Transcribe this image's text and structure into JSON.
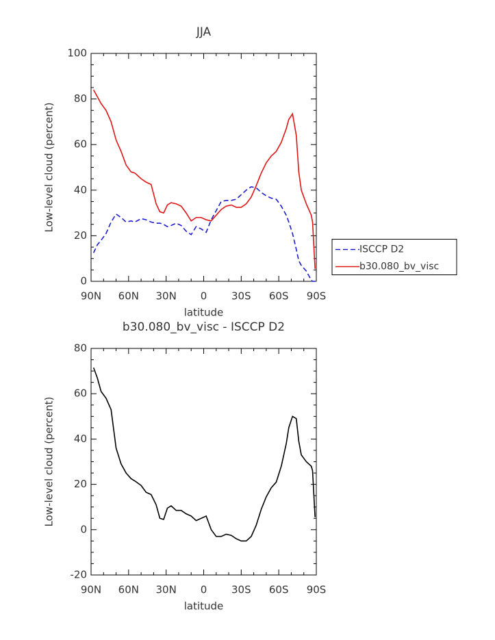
{
  "chart_data": [
    {
      "type": "line",
      "title": "JJA",
      "xlabel": "latitude",
      "ylabel": "Low-level cloud (percent)",
      "x": [
        88,
        85,
        82,
        78,
        74,
        70,
        66,
        62,
        58,
        55,
        50,
        46,
        42,
        38,
        35,
        32,
        29,
        26,
        22,
        18,
        14,
        10,
        6,
        2,
        -2,
        -6,
        -10,
        -14,
        -18,
        -22,
        -26,
        -30,
        -34,
        -38,
        -42,
        -46,
        -50,
        -54,
        -58,
        -62,
        -66,
        -68,
        -71,
        -74,
        -76,
        -78,
        -82,
        -86,
        -87,
        -89
      ],
      "series": [
        {
          "name": "ISCCP D2",
          "color": "#1c1ccf",
          "linestyle": "dashed",
          "values": [
            12.5,
            16,
            18,
            21,
            26,
            29.5,
            28,
            26,
            26.5,
            26,
            27.5,
            27,
            26,
            25.5,
            25.5,
            25,
            24,
            24.5,
            25.5,
            24.5,
            22,
            20.5,
            24,
            23,
            21.5,
            27,
            31,
            35,
            35.5,
            35.5,
            36,
            38,
            40,
            41.5,
            41,
            39,
            37.5,
            36.5,
            36,
            33,
            29,
            26,
            21,
            14,
            9,
            7,
            4.5,
            0.5,
            0,
            0
          ]
        },
        {
          "name": "b30.080_bv_visc",
          "color": "#e01515",
          "linestyle": "solid",
          "values": [
            84,
            81,
            78,
            75,
            70,
            62,
            57,
            51,
            48,
            47.5,
            45,
            43.5,
            42.5,
            34,
            30.5,
            30,
            33.5,
            34.5,
            34,
            33,
            30,
            26.5,
            28,
            28,
            27,
            26.5,
            29,
            31.5,
            33,
            33.5,
            32.5,
            32.5,
            34,
            37,
            42,
            47.5,
            52,
            55,
            57,
            61,
            67,
            71,
            73.5,
            64,
            48,
            40,
            34,
            29,
            26,
            5.5
          ]
        }
      ],
      "xlim": [
        90,
        -90
      ],
      "ylim": [
        0,
        100
      ],
      "xticks": [
        {
          "value": 90,
          "label": "90N"
        },
        {
          "value": 60,
          "label": "60N"
        },
        {
          "value": 30,
          "label": "30N"
        },
        0,
        {
          "value": -30,
          "label": "30S"
        },
        {
          "value": -60,
          "label": "60S"
        },
        {
          "value": -90,
          "label": "90S"
        }
      ],
      "yticks": [
        0,
        20,
        40,
        60,
        80,
        100
      ],
      "legend": "right"
    },
    {
      "type": "line",
      "title": "b30.080_bv_visc - ISCCP D2",
      "xlabel": "latitude",
      "ylabel": "Low-level cloud (percent)",
      "x": [
        88,
        85,
        82,
        78,
        74,
        70,
        66,
        62,
        58,
        55,
        50,
        46,
        42,
        38,
        35,
        32,
        29,
        26,
        22,
        18,
        14,
        10,
        6,
        2,
        -2,
        -6,
        -10,
        -14,
        -18,
        -22,
        -26,
        -30,
        -34,
        -38,
        -42,
        -46,
        -50,
        -54,
        -58,
        -62,
        -66,
        -68,
        -71,
        -74,
        -76,
        -78,
        -82,
        -86,
        -87,
        -89
      ],
      "series": [
        {
          "color": "#000000",
          "linestyle": "solid",
          "values": [
            71.5,
            67,
            61,
            58,
            53,
            36,
            29,
            25,
            22.5,
            21.5,
            19.5,
            16.5,
            15.5,
            11,
            5,
            4.5,
            9.5,
            10.5,
            8.5,
            8.5,
            7,
            6,
            4,
            5,
            6,
            0,
            -3,
            -3,
            -2,
            -2.5,
            -4,
            -5,
            -5,
            -3,
            2,
            9,
            14.5,
            18.5,
            21,
            28,
            38,
            45,
            50,
            49,
            39,
            33,
            30,
            28,
            26,
            5.5
          ]
        }
      ],
      "xlim": [
        90,
        -90
      ],
      "ylim": [
        -20,
        80
      ],
      "xticks": [
        {
          "value": 90,
          "label": "90N"
        },
        {
          "value": 60,
          "label": "60N"
        },
        {
          "value": 30,
          "label": "30N"
        },
        0,
        {
          "value": -30,
          "label": "30S"
        },
        {
          "value": -60,
          "label": "60S"
        },
        {
          "value": -90,
          "label": "90S"
        }
      ],
      "yticks": [
        -20,
        0,
        20,
        40,
        60,
        80
      ]
    }
  ]
}
